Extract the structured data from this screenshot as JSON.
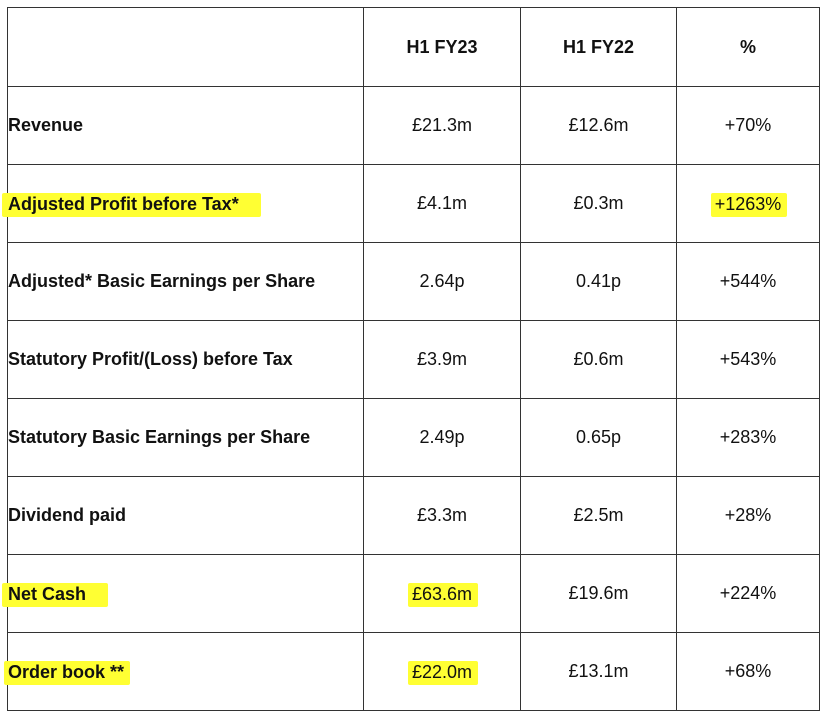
{
  "header": {
    "col_label": "",
    "col_current": "H1 FY23",
    "col_prior": "H1 FY22",
    "col_change": "%"
  },
  "rows": [
    {
      "label": "Revenue",
      "current": "£21.3m",
      "prior": "£12.6m",
      "change": "+70%"
    },
    {
      "label": "Adjusted Profit before Tax*",
      "current": "£4.1m",
      "prior": "£0.3m",
      "change": "+1263%"
    },
    {
      "label": "Adjusted* Basic Earnings per Share",
      "current": "2.64p",
      "prior": "0.41p",
      "change": "+544%"
    },
    {
      "label": "Statutory Profit/(Loss) before Tax",
      "current": "£3.9m",
      "prior": "£0.6m",
      "change": "+543%"
    },
    {
      "label": "Statutory Basic Earnings per Share",
      "current": "2.49p",
      "prior": "0.65p",
      "change": "+283%"
    },
    {
      "label": "Dividend paid",
      "current": "£3.3m",
      "prior": "£2.5m",
      "change": "+28%"
    },
    {
      "label": "Net Cash",
      "current": "£63.6m",
      "prior": "£19.6m",
      "change": "+224%"
    },
    {
      "label": "Order book **",
      "current": "£22.0m",
      "prior": "£13.1m",
      "change": "+68%"
    }
  ],
  "highlight_color": "#ffff33",
  "border_color": "#333333"
}
